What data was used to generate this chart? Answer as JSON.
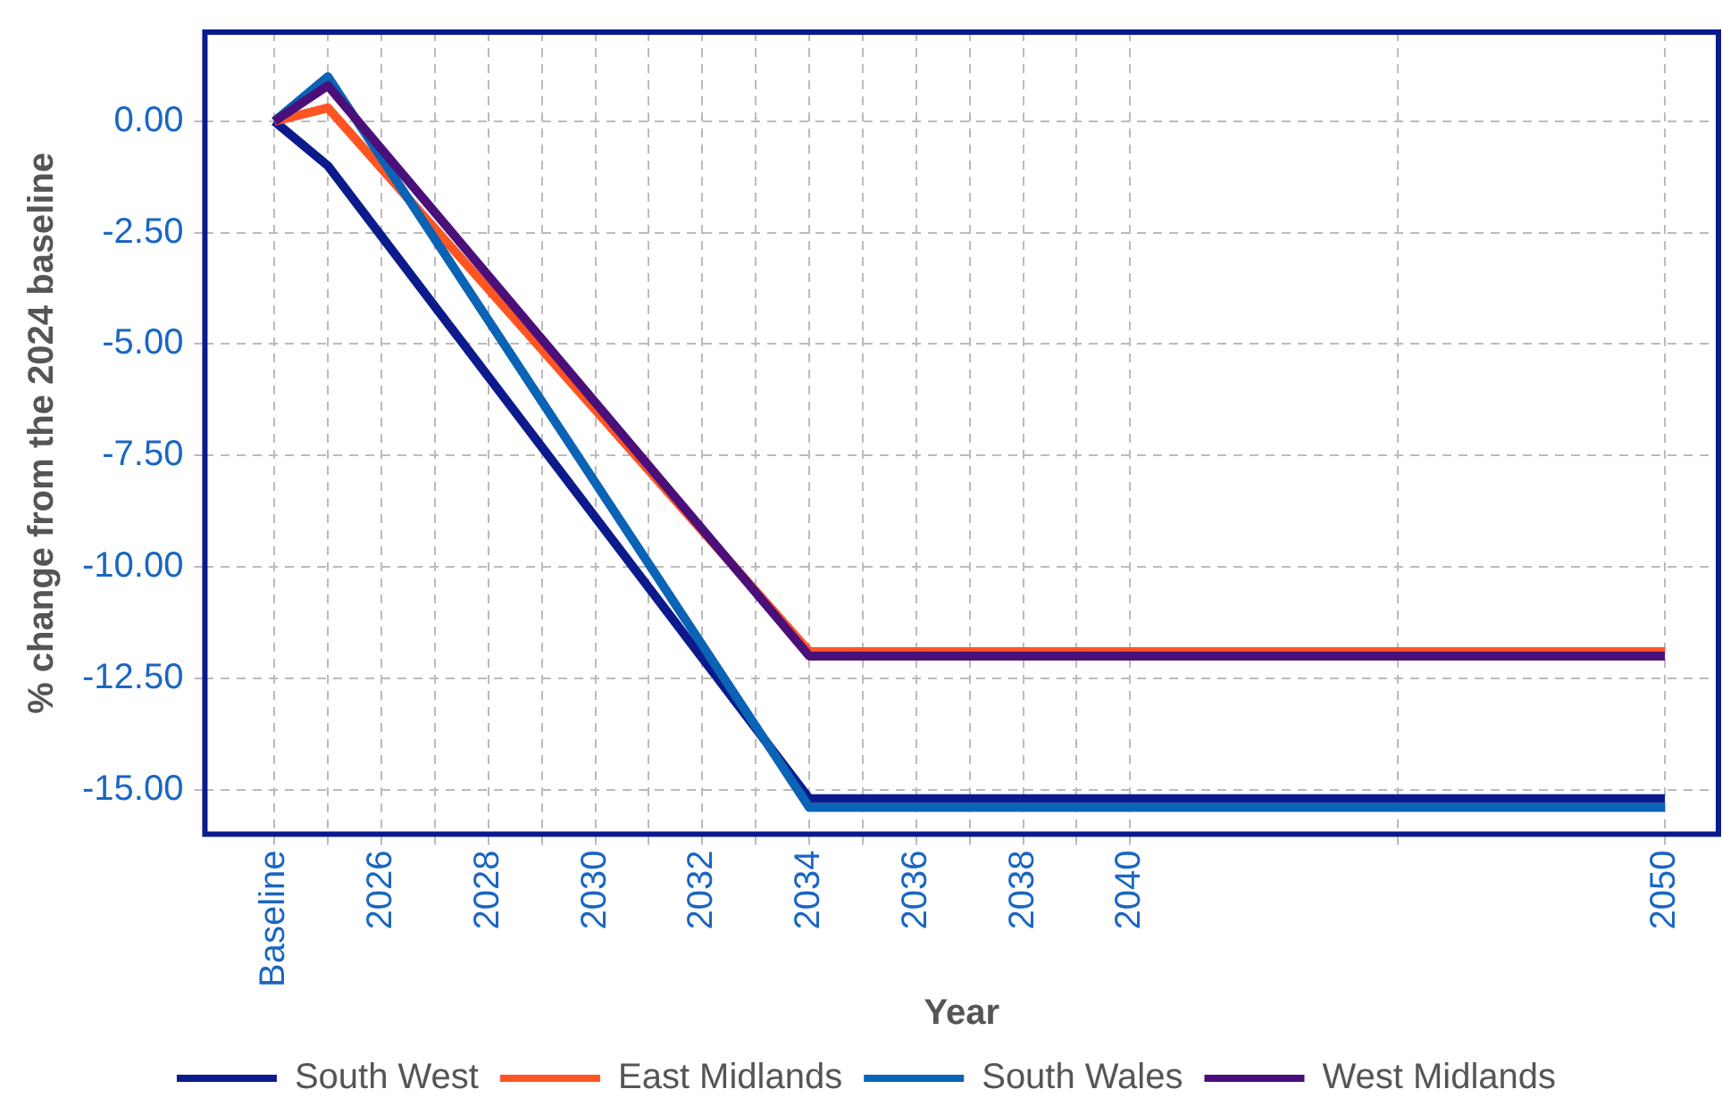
{
  "chart_data": {
    "type": "line",
    "xlabel": "Year",
    "ylabel": "% change from the 2024 baseline",
    "x": [
      2024,
      2025,
      2034,
      2050
    ],
    "series": [
      {
        "name": "South West",
        "color": "#0d1a8c",
        "values": [
          0,
          -1.0,
          -15.2,
          -15.2
        ]
      },
      {
        "name": "East Midlands",
        "color": "#ff5522",
        "values": [
          0,
          0.3,
          -11.9,
          -11.9
        ]
      },
      {
        "name": "South Wales",
        "color": "#0b63b5",
        "values": [
          0,
          1.0,
          -15.4,
          -15.4
        ]
      },
      {
        "name": "West Midlands",
        "color": "#4b0f7a",
        "values": [
          0,
          0.8,
          -12.0,
          -12.0
        ]
      }
    ],
    "xlim": [
      2022.7,
      2051
    ],
    "xticks": [
      {
        "value": 2024,
        "label": "Baseline"
      },
      {
        "value": 2025,
        "label": null
      },
      2026,
      {
        "value": 2027,
        "label": null
      },
      2028,
      {
        "value": 2029,
        "label": null
      },
      2030,
      {
        "value": 2031,
        "label": null
      },
      2032,
      {
        "value": 2033,
        "label": null
      },
      2034,
      {
        "value": 2035,
        "label": null
      },
      2036,
      {
        "value": 2037,
        "label": null
      },
      2038,
      {
        "value": 2039,
        "label": null
      },
      2040,
      {
        "value": 2045,
        "label": null
      },
      2050
    ],
    "ylim": [
      -16,
      2
    ],
    "yticks": [
      {
        "value": 0,
        "label": "0.00"
      },
      {
        "value": -2.5,
        "label": "-2.50"
      },
      {
        "value": -5,
        "label": "-5.00"
      },
      {
        "value": -7.5,
        "label": "-7.50"
      },
      {
        "value": -10,
        "label": "-10.00"
      },
      {
        "value": -12.5,
        "label": "-12.50"
      },
      {
        "value": -15,
        "label": "-15.00"
      }
    ],
    "grid": true,
    "legend": "bottom",
    "marker": "none",
    "line_style": "solid"
  }
}
